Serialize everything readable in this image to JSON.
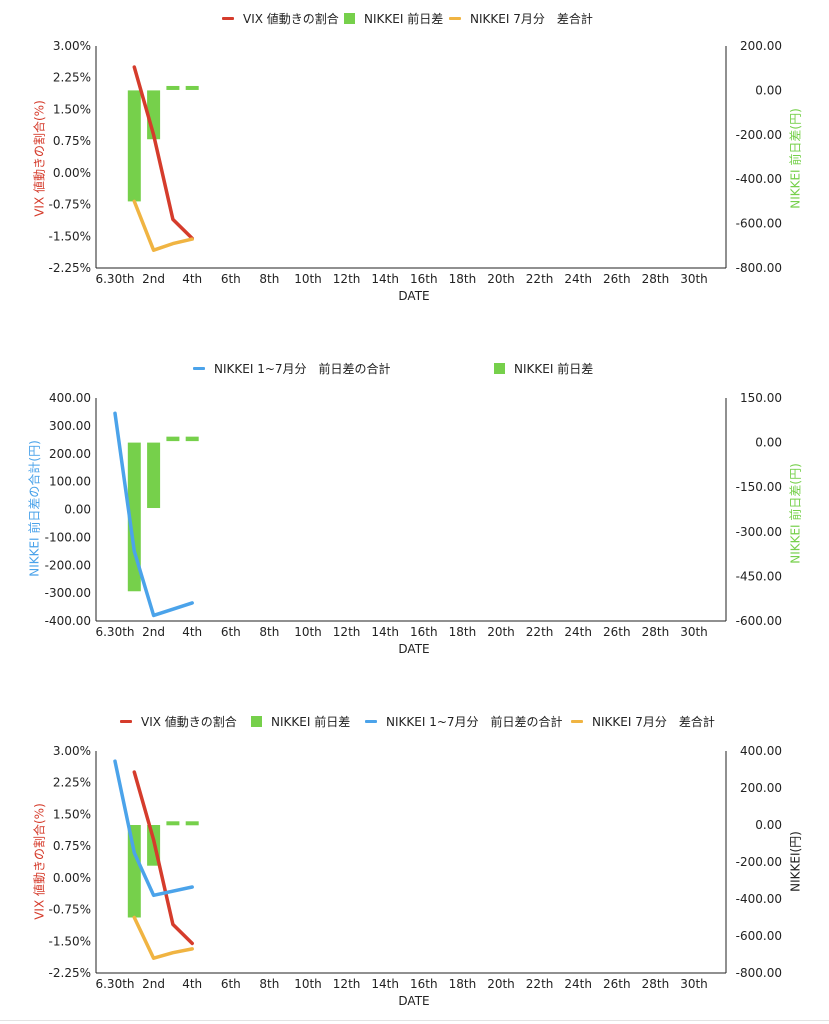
{
  "colors": {
    "vix": "#d53c2c",
    "nikkei_bar": "#76d04b",
    "nikkei7": "#f0b442",
    "nikkei_sum": "#4ba3ea",
    "axis": "#222222"
  },
  "x_ticks": [
    "6.30th",
    "2nd",
    "4th",
    "6th",
    "8th",
    "10th",
    "12th",
    "14th",
    "16th",
    "18th",
    "20th",
    "22th",
    "24th",
    "26th",
    "28th",
    "30th"
  ],
  "chart_data": [
    {
      "type": "bar",
      "xlabel": "DATE",
      "ylabel_left": "VIX 値動きの割合(%)",
      "ylabel_right": "NIKKEI 前日差(円)",
      "yticks_left": [
        "3.00%",
        "2.25%",
        "1.50%",
        "0.75%",
        "0.00%",
        "-0.75%",
        "-1.50%",
        "-2.25%"
      ],
      "yticks_right": [
        "200.00",
        "0.00",
        "-200.00",
        "-400.00",
        "-600.00",
        "-800.00"
      ],
      "ylim_left": [
        -2.25,
        3.0
      ],
      "ylim_right": [
        -800,
        200
      ],
      "legend": [
        "VIX 値動きの割合",
        "NIKKEI 前日差",
        "NIKKEI 7月分　差合計"
      ],
      "series": [
        {
          "name": "VIX 値動きの割合",
          "type": "line",
          "axis": "left",
          "x": [
            1,
            2,
            3,
            4
          ],
          "values": [
            2.5,
            0.9,
            -1.1,
            -1.55
          ]
        },
        {
          "name": "NIKKEI 前日差",
          "type": "bar",
          "axis": "right",
          "bars": [
            {
              "x": 1,
              "from": 0,
              "to": -500
            },
            {
              "x": 2,
              "from": 0,
              "to": -220
            },
            {
              "x": 3,
              "from": 20,
              "to": 5
            },
            {
              "x": 4,
              "from": 20,
              "to": 5
            }
          ]
        },
        {
          "name": "NIKKEI 7月分　差合計",
          "type": "line",
          "axis": "right",
          "x": [
            1,
            2,
            3,
            4
          ],
          "values": [
            -500,
            -720,
            -690,
            -670
          ]
        }
      ]
    },
    {
      "type": "bar",
      "xlabel": "DATE",
      "ylabel_left": "NIKKEI 前日差の合計(円)",
      "ylabel_right": "NIKKEI 前日差(円)",
      "yticks_left": [
        "400.00",
        "300.00",
        "200.00",
        "100.00",
        "0.00",
        "-100.00",
        "-200.00",
        "-300.00",
        "-400.00"
      ],
      "yticks_right": [
        "150.00",
        "0.00",
        "-150.00",
        "-300.00",
        "-450.00",
        "-600.00"
      ],
      "ylim_left": [
        -400,
        400
      ],
      "ylim_right": [
        -600,
        150
      ],
      "legend": [
        "NIKKEI 1~7月分　前日差の合計",
        "NIKKEI 前日差"
      ],
      "series": [
        {
          "name": "NIKKEI 1~7月分　前日差の合計",
          "type": "line",
          "axis": "left",
          "x": [
            0,
            1,
            2,
            4
          ],
          "values": [
            345,
            -150,
            -380,
            -335
          ]
        },
        {
          "name": "NIKKEI 前日差",
          "type": "bar",
          "axis": "right",
          "bars": [
            {
              "x": 1,
              "from": 0,
              "to": -500
            },
            {
              "x": 2,
              "from": 0,
              "to": -220
            },
            {
              "x": 3,
              "from": 20,
              "to": 5
            },
            {
              "x": 4,
              "from": 20,
              "to": 5
            }
          ]
        }
      ]
    },
    {
      "type": "bar",
      "xlabel": "DATE",
      "ylabel_left": "VIX 値動きの割合(%)",
      "ylabel_right": "NIKKEI(円)",
      "yticks_left": [
        "3.00%",
        "2.25%",
        "1.50%",
        "0.75%",
        "0.00%",
        "-0.75%",
        "-1.50%",
        "-2.25%"
      ],
      "yticks_right": [
        "400.00",
        "200.00",
        "0.00",
        "-200.00",
        "-400.00",
        "-600.00",
        "-800.00"
      ],
      "ylim_left": [
        -2.25,
        3.0
      ],
      "ylim_right": [
        -800,
        400
      ],
      "legend": [
        "VIX 値動きの割合",
        "NIKKEI 前日差",
        "NIKKEI 1~7月分　前日差の合計",
        "NIKKEI 7月分　差合計"
      ],
      "series": [
        {
          "name": "VIX 値動きの割合",
          "type": "line",
          "axis": "left",
          "x": [
            1,
            2,
            3,
            4
          ],
          "values": [
            2.5,
            0.9,
            -1.1,
            -1.55
          ]
        },
        {
          "name": "NIKKEI 前日差",
          "type": "bar",
          "axis": "right",
          "bars": [
            {
              "x": 1,
              "from": 0,
              "to": -500
            },
            {
              "x": 2,
              "from": 0,
              "to": -220
            },
            {
              "x": 3,
              "from": 20,
              "to": 5
            },
            {
              "x": 4,
              "from": 20,
              "to": 5
            }
          ]
        },
        {
          "name": "NIKKEI 1~7月分　前日差の合計",
          "type": "line",
          "axis": "right",
          "x": [
            0,
            1,
            2,
            4
          ],
          "values": [
            345,
            -150,
            -380,
            -335
          ]
        },
        {
          "name": "NIKKEI 7月分　差合計",
          "type": "line",
          "axis": "right",
          "x": [
            1,
            2,
            3,
            4
          ],
          "values": [
            -500,
            -720,
            -690,
            -670
          ]
        }
      ]
    }
  ]
}
